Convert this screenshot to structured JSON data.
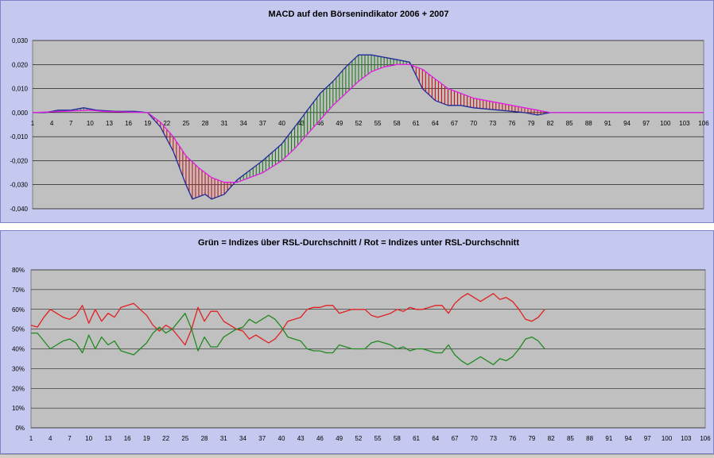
{
  "chart_data": [
    {
      "type": "line",
      "title": "MACD auf den Börsenindikator 2006 + 2007",
      "xlabel": "",
      "ylabel": "",
      "ylim": [
        -0.04,
        0.03
      ],
      "y_ticks": [
        "0,030",
        "0,020",
        "0,010",
        "0,000",
        "-0,010",
        "-0,020",
        "-0,030",
        "-0,040"
      ],
      "x_ticks": [
        "1",
        "4",
        "7",
        "10",
        "13",
        "16",
        "19",
        "22",
        "25",
        "28",
        "31",
        "34",
        "37",
        "40",
        "43",
        "46",
        "49",
        "52",
        "55",
        "58",
        "61",
        "64",
        "67",
        "70",
        "73",
        "76",
        "79",
        "82",
        "85",
        "88",
        "91",
        "94",
        "97",
        "100",
        "103",
        "106"
      ],
      "grid": true,
      "x_count": 106,
      "series": [
        {
          "name": "",
          "color": "#1f2a9a",
          "points": [
            [
              1,
              0.0
            ],
            [
              3,
              0.0
            ],
            [
              5,
              0.001
            ],
            [
              7,
              0.001
            ],
            [
              9,
              0.002
            ],
            [
              11,
              0.001
            ],
            [
              14,
              0.0005
            ],
            [
              17,
              0.0005
            ],
            [
              19,
              0.0
            ],
            [
              21,
              -0.006
            ],
            [
              23,
              -0.016
            ],
            [
              25,
              -0.03
            ],
            [
              26,
              -0.036
            ],
            [
              28,
              -0.034
            ],
            [
              29,
              -0.036
            ],
            [
              31,
              -0.034
            ],
            [
              33,
              -0.028
            ],
            [
              35,
              -0.024
            ],
            [
              37,
              -0.02
            ],
            [
              40,
              -0.013
            ],
            [
              42,
              -0.006
            ],
            [
              44,
              0.001
            ],
            [
              46,
              0.008
            ],
            [
              48,
              0.013
            ],
            [
              50,
              0.019
            ],
            [
              52,
              0.024
            ],
            [
              54,
              0.024
            ],
            [
              56,
              0.023
            ],
            [
              58,
              0.022
            ],
            [
              60,
              0.021
            ],
            [
              62,
              0.01
            ],
            [
              64,
              0.005
            ],
            [
              66,
              0.003
            ],
            [
              68,
              0.003
            ],
            [
              70,
              0.002
            ],
            [
              72,
              0.0015
            ],
            [
              74,
              0.001
            ],
            [
              76,
              0.0005
            ],
            [
              78,
              0.0
            ],
            [
              80,
              -0.001
            ],
            [
              82,
              0.0
            ],
            [
              106,
              0.0
            ]
          ]
        },
        {
          "name": "",
          "color": "#e01ce0",
          "points": [
            [
              1,
              0.0
            ],
            [
              10,
              0.001
            ],
            [
              12,
              0.0005
            ],
            [
              19,
              0.0
            ],
            [
              21,
              -0.004
            ],
            [
              23,
              -0.01
            ],
            [
              25,
              -0.018
            ],
            [
              27,
              -0.023
            ],
            [
              29,
              -0.027
            ],
            [
              31,
              -0.029
            ],
            [
              33,
              -0.029
            ],
            [
              35,
              -0.027
            ],
            [
              37,
              -0.025
            ],
            [
              40,
              -0.02
            ],
            [
              42,
              -0.015
            ],
            [
              44,
              -0.009
            ],
            [
              46,
              -0.003
            ],
            [
              48,
              0.003
            ],
            [
              50,
              0.008
            ],
            [
              52,
              0.013
            ],
            [
              54,
              0.017
            ],
            [
              56,
              0.019
            ],
            [
              58,
              0.02
            ],
            [
              60,
              0.02
            ],
            [
              62,
              0.018
            ],
            [
              64,
              0.014
            ],
            [
              66,
              0.01
            ],
            [
              68,
              0.008
            ],
            [
              70,
              0.006
            ],
            [
              72,
              0.005
            ],
            [
              74,
              0.004
            ],
            [
              76,
              0.003
            ],
            [
              78,
              0.002
            ],
            [
              80,
              0.001
            ],
            [
              82,
              0.0
            ],
            [
              106,
              0.0
            ]
          ]
        }
      ],
      "hatch_positive_color": "#1f7a1f",
      "hatch_negative_color": "#d01010",
      "hatch_range": [
        1,
        81
      ]
    },
    {
      "type": "line",
      "title": "Grün = Indizes über RSL-Durchschnitt / Rot = Indizes unter RSL-Durchschnitt",
      "xlabel": "",
      "ylabel": "",
      "ylim": [
        0,
        80
      ],
      "y_ticks": [
        "80%",
        "70%",
        "60%",
        "50%",
        "40%",
        "30%",
        "20%",
        "10%",
        "0%"
      ],
      "x_ticks": [
        "1",
        "4",
        "7",
        "10",
        "13",
        "16",
        "19",
        "22",
        "25",
        "28",
        "31",
        "34",
        "37",
        "40",
        "43",
        "46",
        "49",
        "52",
        "55",
        "58",
        "61",
        "64",
        "67",
        "70",
        "73",
        "76",
        "79",
        "82",
        "85",
        "88",
        "91",
        "94",
        "97",
        "100",
        "103",
        "106"
      ],
      "grid": true,
      "x_count": 106,
      "series": [
        {
          "name": "",
          "color": "#e02020",
          "points": [
            [
              1,
              52
            ],
            [
              2,
              51
            ],
            [
              3,
              56
            ],
            [
              4,
              60
            ],
            [
              5,
              58
            ],
            [
              6,
              56
            ],
            [
              7,
              55
            ],
            [
              8,
              57
            ],
            [
              9,
              62
            ],
            [
              10,
              53
            ],
            [
              11,
              60
            ],
            [
              12,
              54
            ],
            [
              13,
              58
            ],
            [
              14,
              56
            ],
            [
              15,
              61
            ],
            [
              16,
              62
            ],
            [
              17,
              63
            ],
            [
              18,
              60
            ],
            [
              19,
              57
            ],
            [
              20,
              52
            ],
            [
              21,
              49
            ],
            [
              22,
              52
            ],
            [
              23,
              50
            ],
            [
              24,
              46
            ],
            [
              25,
              42
            ],
            [
              26,
              50
            ],
            [
              27,
              61
            ],
            [
              28,
              54
            ],
            [
              29,
              59
            ],
            [
              30,
              59
            ],
            [
              31,
              54
            ],
            [
              32,
              52
            ],
            [
              33,
              50
            ],
            [
              34,
              49
            ],
            [
              35,
              45
            ],
            [
              36,
              47
            ],
            [
              37,
              45
            ],
            [
              38,
              43
            ],
            [
              39,
              45
            ],
            [
              40,
              49
            ],
            [
              41,
              54
            ],
            [
              42,
              55
            ],
            [
              43,
              56
            ],
            [
              44,
              60
            ],
            [
              45,
              61
            ],
            [
              46,
              61
            ],
            [
              47,
              62
            ],
            [
              48,
              62
            ],
            [
              49,
              58
            ],
            [
              50,
              59
            ],
            [
              51,
              60
            ],
            [
              52,
              60
            ],
            [
              53,
              60
            ],
            [
              54,
              57
            ],
            [
              55,
              56
            ],
            [
              56,
              57
            ],
            [
              57,
              58
            ],
            [
              58,
              60
            ],
            [
              59,
              59
            ],
            [
              60,
              61
            ],
            [
              61,
              60
            ],
            [
              62,
              60
            ],
            [
              63,
              61
            ],
            [
              64,
              62
            ],
            [
              65,
              62
            ],
            [
              66,
              58
            ],
            [
              67,
              63
            ],
            [
              68,
              66
            ],
            [
              69,
              68
            ],
            [
              70,
              66
            ],
            [
              71,
              64
            ],
            [
              72,
              66
            ],
            [
              73,
              68
            ],
            [
              74,
              65
            ],
            [
              75,
              66
            ],
            [
              76,
              64
            ],
            [
              77,
              60
            ],
            [
              78,
              55
            ],
            [
              79,
              54
            ],
            [
              80,
              56
            ],
            [
              81,
              60
            ]
          ]
        },
        {
          "name": "",
          "color": "#208a20",
          "points": [
            [
              1,
              48
            ],
            [
              2,
              48
            ],
            [
              3,
              44
            ],
            [
              4,
              40
            ],
            [
              5,
              42
            ],
            [
              6,
              44
            ],
            [
              7,
              45
            ],
            [
              8,
              43
            ],
            [
              9,
              38
            ],
            [
              10,
              47
            ],
            [
              11,
              40
            ],
            [
              12,
              46
            ],
            [
              13,
              42
            ],
            [
              14,
              44
            ],
            [
              15,
              39
            ],
            [
              16,
              38
            ],
            [
              17,
              37
            ],
            [
              18,
              40
            ],
            [
              19,
              43
            ],
            [
              20,
              48
            ],
            [
              21,
              51
            ],
            [
              22,
              48
            ],
            [
              23,
              50
            ],
            [
              24,
              54
            ],
            [
              25,
              58
            ],
            [
              26,
              50
            ],
            [
              27,
              39
            ],
            [
              28,
              46
            ],
            [
              29,
              41
            ],
            [
              30,
              41
            ],
            [
              31,
              46
            ],
            [
              32,
              48
            ],
            [
              33,
              50
            ],
            [
              34,
              51
            ],
            [
              35,
              55
            ],
            [
              36,
              53
            ],
            [
              37,
              55
            ],
            [
              38,
              57
            ],
            [
              39,
              55
            ],
            [
              40,
              51
            ],
            [
              41,
              46
            ],
            [
              42,
              45
            ],
            [
              43,
              44
            ],
            [
              44,
              40
            ],
            [
              45,
              39
            ],
            [
              46,
              39
            ],
            [
              47,
              38
            ],
            [
              48,
              38
            ],
            [
              49,
              42
            ],
            [
              50,
              41
            ],
            [
              51,
              40
            ],
            [
              52,
              40
            ],
            [
              53,
              40
            ],
            [
              54,
              43
            ],
            [
              55,
              44
            ],
            [
              56,
              43
            ],
            [
              57,
              42
            ],
            [
              58,
              40
            ],
            [
              59,
              41
            ],
            [
              60,
              39
            ],
            [
              61,
              40
            ],
            [
              62,
              40
            ],
            [
              63,
              39
            ],
            [
              64,
              38
            ],
            [
              65,
              38
            ],
            [
              66,
              42
            ],
            [
              67,
              37
            ],
            [
              68,
              34
            ],
            [
              69,
              32
            ],
            [
              70,
              34
            ],
            [
              71,
              36
            ],
            [
              72,
              34
            ],
            [
              73,
              32
            ],
            [
              74,
              35
            ],
            [
              75,
              34
            ],
            [
              76,
              36
            ],
            [
              77,
              40
            ],
            [
              78,
              45
            ],
            [
              79,
              46
            ],
            [
              80,
              44
            ],
            [
              81,
              40
            ]
          ]
        }
      ]
    }
  ]
}
